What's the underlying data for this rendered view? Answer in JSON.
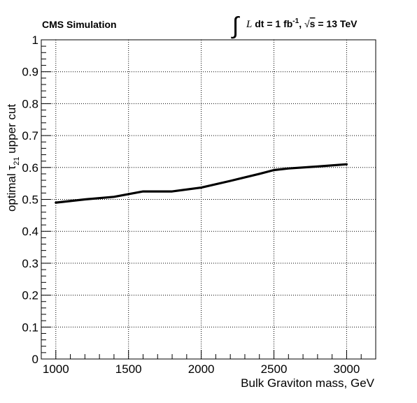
{
  "header": {
    "left_label": "CMS Simulation",
    "lumi": {
      "integral_symbol": "∫",
      "L": "L",
      "dt": " dt = 1 fb",
      "exponent": "-1",
      "sep": ",  ",
      "sqrt_symbol": "√",
      "s": "s",
      "energy": " = 13 TeV"
    }
  },
  "chart_data": {
    "type": "line",
    "title": "",
    "xlabel": "Bulk Graviton mass, GeV",
    "ylabel": {
      "prefix": "optimal ",
      "tau": "τ",
      "subscript": "21",
      "suffix": " upper cut"
    },
    "xlim": [
      900,
      3200
    ],
    "ylim": [
      0,
      1
    ],
    "x_ticks": [
      1000,
      1500,
      2000,
      2500,
      3000
    ],
    "y_ticks": [
      0,
      0.1,
      0.2,
      0.3,
      0.4,
      0.5,
      0.6,
      0.7,
      0.8,
      0.9,
      1
    ],
    "y_tick_labels": [
      "0",
      "0.1",
      "0.2",
      "0.3",
      "0.4",
      "0.5",
      "0.6",
      "0.7",
      "0.8",
      "0.9",
      "1"
    ],
    "grid": true,
    "series": [
      {
        "color": "#000000",
        "x": [
          1000,
          1200,
          1400,
          1600,
          1800,
          2000,
          2200,
          2400,
          2500,
          2600,
          2800,
          3000
        ],
        "y": [
          0.49,
          0.5,
          0.508,
          0.525,
          0.525,
          0.537,
          0.558,
          0.58,
          0.592,
          0.597,
          0.603,
          0.61
        ]
      }
    ]
  }
}
